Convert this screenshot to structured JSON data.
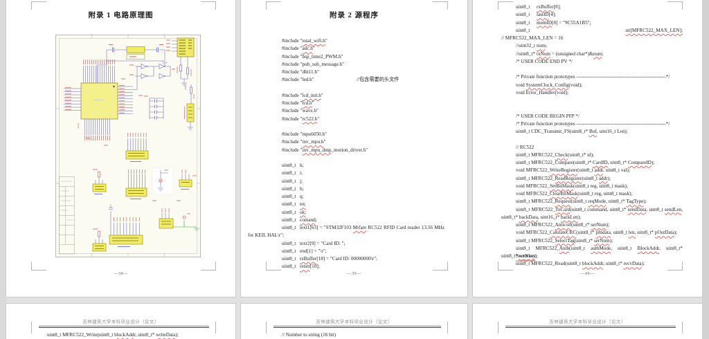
{
  "colors": {
    "canvas_bg": "#e2e2e2",
    "page_bg": "#ffffff",
    "spell_underline": "#e06666",
    "schematic_wire": "#6565c0",
    "schematic_part_fill": "#f1ec62",
    "schematic_label_red": "#c05050",
    "header_text": "#8d8d8d"
  },
  "header_repeat": "吉林建筑大学本科毕业设计（论文）",
  "spell_tokens": [
    "str[MFRC522_MAX_LEN];",
    "SystemClock_Config",
    "total_wifi.h",
    "inv_mpu_dmp",
    "CalulateCRC",
    "lcd_init.h",
    "inv_mpu.h",
    "ClearBitMask",
    "WriteRegister",
    "ReadRegister",
    "SetBitMask",
    "CompareID",
    "BlockAddr",
    "blockAddr",
    "Sectorkey",
    "authMode",
    "sendData",
    "backData",
    "writeData",
    "recvData",
    "SelectTag",
    "Anticoll",
    "reqMode",
    "TagType",
    "sendLen",
    "backLen",
    "txBuffer",
    "rxBuffer",
    "retstr",
    "comand",
    "Mifare",
    "serNum",
    "CardID",
    "lastID",
    "memID",
    "txNum",
    "rc522.h",
    "adc.h",
    "lcd.h",
    "Request",
    "ToCard",
    "Check",
    "pIndata",
    "pOutData",
    "Auth",
    "Buf",
    "num",
    "addr",
    "len,",
    "en;",
    "ok;"
  ],
  "page38": {
    "title": "附录 1 电路原理图",
    "page_number": "—38—"
  },
  "page39": {
    "title": "附录 2 源程序",
    "page_number": "—39—",
    "lines": [
      {
        "k": "ind",
        "t": "#include \"total_wifi.h\""
      },
      {
        "k": "ind",
        "t": "#include \"adc.h\""
      },
      {
        "k": "ind",
        "t": "#include \"bsp_time2_PWM.h\""
      },
      {
        "k": "ind",
        "t": "#include \"pub_sub_message.h\""
      },
      {
        "k": "ind",
        "t": "#include \"dht11.h\""
      },
      {
        "k": "decl",
        "a": "#include \"led.h\"",
        "b": "//包含需要的头文件",
        "tab": 157
      },
      {
        "k": "blank"
      },
      {
        "k": "ind",
        "t": "#include \"lcd_init.h\""
      },
      {
        "k": "ind",
        "t": "#include \"lcd.h\""
      },
      {
        "k": "ind",
        "t": "#include \"wave.h\""
      },
      {
        "k": "ind",
        "t": "#include \"rc522.h\""
      },
      {
        "k": "blank"
      },
      {
        "k": "ind",
        "t": "#include \"mpu6050.h\""
      },
      {
        "k": "ind",
        "t": "#include \"inv_mpu.h\""
      },
      {
        "k": "ind",
        "t": "#include \"inv_mpu_dmp_motion_driver.h\""
      },
      {
        "k": "blank"
      },
      {
        "k": "decl",
        "a": "uint8_t",
        "b": "k;"
      },
      {
        "k": "decl",
        "a": "uint8_t",
        "b": "i;"
      },
      {
        "k": "decl",
        "a": "uint8_t",
        "b": "j;"
      },
      {
        "k": "decl",
        "a": "uint8_t",
        "b": "b;"
      },
      {
        "k": "decl",
        "a": "uint8_t",
        "b": "q;"
      },
      {
        "k": "decl",
        "a": "uint8_t",
        "b": "en;"
      },
      {
        "k": "decl",
        "a": "uint8_t",
        "b": "ok;"
      },
      {
        "k": "decl",
        "a": "uint8_t",
        "b": "comand;"
      },
      {
        "k": "decl",
        "a": "uint8_t",
        "b": "text1[63] = \"STM32F103 Mifare RC522 RFID Card reader 13.56 MHz",
        "jb": true
      },
      {
        "k": "mar",
        "t": "for KEIL HAL\\r\";"
      },
      {
        "k": "decl",
        "a": "uint8_t",
        "b": "text2[9] = \"Card ID: \";"
      },
      {
        "k": "decl",
        "a": "uint8_t",
        "b": "end[1] = \"\\r\";"
      },
      {
        "k": "decl",
        "a": "uint8_t",
        "b": "txBuffer[18] = \"Card ID: 00000000\\r\";"
      },
      {
        "k": "decl",
        "a": "uint8_t",
        "b": "retstr[10];"
      }
    ]
  },
  "page40": {
    "page_number": "—40—",
    "lines": [
      {
        "k": "decl",
        "a": "uint8_t",
        "b": "rxBuffer[8];"
      },
      {
        "k": "decl",
        "a": "uint8_t",
        "b": "lastID[4];"
      },
      {
        "k": "decl",
        "a": "uint8_t",
        "b": "memID[8] = \"9C55A1B5\";"
      },
      {
        "k": "split",
        "a": "uint8_t",
        "b": "str[MFRC522_MAX_LEN];"
      },
      {
        "k": "mar",
        "t": "// MFRC522_MAX_LEN = 16"
      },
      {
        "k": "decl",
        "a": "//uint32_t",
        "b": "num;"
      },
      {
        "k": "decl",
        "a": "//uint8_t*",
        "b": "txNum = (unsigned char*)&num;"
      },
      {
        "k": "ind",
        "t": "/* USER CODE END PV */"
      },
      {
        "k": "blank"
      },
      {
        "k": "ind",
        "t": "/* Private function prototypes ------------------------------------------------------*/"
      },
      {
        "k": "ind",
        "t": "void SystemClock_Config(void);"
      },
      {
        "k": "ind",
        "t": "void Error_Handler(void);"
      },
      {
        "k": "blank"
      },
      {
        "k": "blank"
      },
      {
        "k": "ind",
        "t": "/* USER CODE BEGIN PFP */"
      },
      {
        "k": "ind",
        "t": "/* Private function prototypes ------------------------------------------------------*/"
      },
      {
        "k": "ind",
        "t": "uint8_t CDC_Transmit_FS(uint8_t* Buf, uint16_t Len);"
      },
      {
        "k": "blank"
      },
      {
        "k": "ind",
        "t": "// RC522"
      },
      {
        "k": "ind",
        "t": "uint8_t MFRC522_Check(uint8_t* id);"
      },
      {
        "k": "ind",
        "t": "uint8_t MFRC522_Compare(uint8_t* CardID, uint8_t* CompareID);"
      },
      {
        "k": "ind",
        "t": "void MFRC522_WriteRegister(uint8_t addr, uint8_t val);"
      },
      {
        "k": "ind",
        "t": "uint8_t MFRC522_ReadRegister(uint8_t addr);"
      },
      {
        "k": "ind",
        "t": "void MFRC522_SetBitMask(uint8_t reg, uint8_t mask);"
      },
      {
        "k": "ind",
        "t": "void MFRC522_ClearBitMask(uint8_t reg, uint8_t mask);"
      },
      {
        "k": "ind",
        "t": "uint8_t MFRC522_Request(uint8_t reqMode, uint8_t* TagType);"
      },
      {
        "k": "ind",
        "t": "uint8_t MFRC522_ToCard(uint8_t command, uint8_t* sendData, uint8_t sendLen,",
        "just": true
      },
      {
        "k": "mar",
        "t": "uint8_t* backData, uint16_t* backLen);"
      },
      {
        "k": "ind",
        "t": "uint8_t MFRC522_Anticoll(uint8_t* serNum);"
      },
      {
        "k": "ind",
        "t": "void MFRC522_CalulateCRC(uint8_t* pIndata, uint8_t len, uint8_t* pOutData);"
      },
      {
        "k": "ind",
        "t": "uint8_t MFRC522_SelectTag(uint8_t* serNum);"
      },
      {
        "k": "ind",
        "t": "uint8_t MFRC522_Auth(uint8_t authMode, uint8_t BlockAddr, uint8_t* Sectorkey,",
        "just": true
      },
      {
        "k": "mar",
        "t": "uint8_t* serNum);"
      },
      {
        "k": "ind",
        "t": "uint8_t MFRC522_Read(uint8_t blockAddr, uint8_t* recvData);"
      }
    ]
  },
  "row2": {
    "header": "吉林建筑大学本科毕业设计（论文）",
    "col1_lines": [
      {
        "k": "ind",
        "t": "uint8_t MFRC522_Write(uint8_t blockAddr, uint8_t* writeData);"
      }
    ],
    "col2_lines": [
      {
        "k": "ind",
        "t": "// Number to string (16 bit)"
      }
    ],
    "col3_lines": []
  }
}
